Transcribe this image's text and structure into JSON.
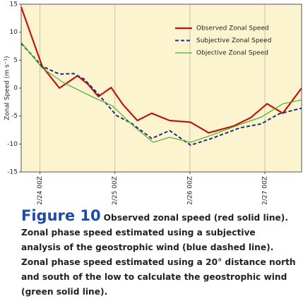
{
  "chart_data": {
    "type": "line",
    "ylabel": "Zonal Speed (m s⁻¹)",
    "xlim": [
      -0.25,
      3.49
    ],
    "ylim": [
      -15,
      15
    ],
    "yticks": [
      -15,
      -10,
      -5,
      0,
      5,
      10,
      15
    ],
    "xticks": [
      {
        "value": 0,
        "label": "2/24 00Z"
      },
      {
        "value": 1,
        "label": "2/25 00Z"
      },
      {
        "value": 2,
        "label": "2/26 00Z"
      },
      {
        "value": 3,
        "label": "2/27 00Z"
      }
    ],
    "grid": "x",
    "background": "#fcf3cf",
    "legend": "upper right",
    "series": [
      {
        "name": "Observed Zonal Speed",
        "color": "#c0150f",
        "style": "solid",
        "x": [
          -0.25,
          0.03,
          0.26,
          0.5,
          0.64,
          0.78,
          0.95,
          1.11,
          1.3,
          1.49,
          1.73,
          2.01,
          2.25,
          2.58,
          2.81,
          3.03,
          3.24,
          3.49
        ],
        "values": [
          14.5,
          3.9,
          0,
          2.2,
          0.7,
          -1.5,
          0.1,
          -3,
          -5.8,
          -4.5,
          -5.8,
          -6.1,
          -8,
          -6.8,
          -5.3,
          -2.8,
          -4.5,
          0
        ]
      },
      {
        "name": "Subjective Zonal Speed",
        "color": "#1c2f7c",
        "style": "dashed",
        "x": [
          -0.25,
          0.03,
          0.26,
          0.45,
          0.59,
          0.78,
          1.02,
          1.21,
          1.49,
          1.73,
          2.01,
          2.29,
          2.67,
          2.95,
          3.19,
          3.49
        ],
        "values": [
          8,
          3.9,
          2.5,
          2.6,
          1.6,
          -1.1,
          -4.9,
          -6.2,
          -9,
          -7.6,
          -10.2,
          -9,
          -7.1,
          -6.4,
          -4.6,
          -3.6
        ]
      },
      {
        "name": "Objective Zonal Speed",
        "color": "#4caf2a",
        "style": "solid",
        "x": [
          -0.25,
          0.03,
          0.31,
          0.69,
          0.97,
          1.25,
          1.51,
          1.73,
          2.01,
          2.29,
          2.67,
          2.95,
          3.24,
          3.49
        ],
        "values": [
          8.2,
          3.6,
          1,
          -1.5,
          -3.2,
          -6.8,
          -9.7,
          -8.8,
          -9.7,
          -8.4,
          -6.5,
          -5.2,
          -2.8,
          -2.1
        ]
      }
    ]
  },
  "caption": {
    "label": "Figure 10",
    "text": "Observed zonal speed (red solid line). Zonal phase speed estimated using a subjective analysis of the geostrophic wind (blue dashed line). Zonal phase speed estimated using a 20° distance north and south of the low to calculate the geostrophic wind (green solid line)."
  }
}
